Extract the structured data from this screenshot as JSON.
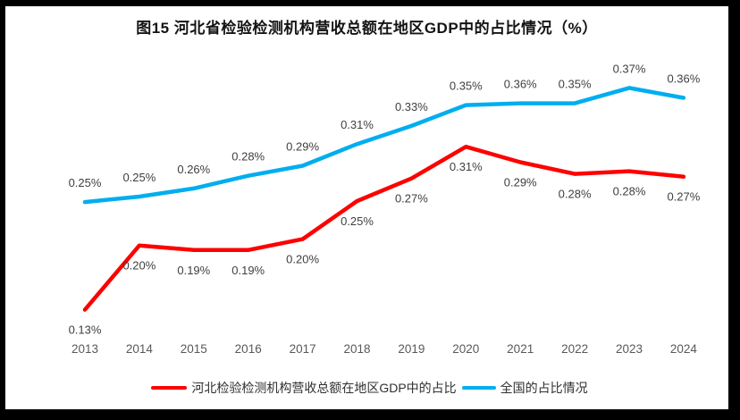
{
  "frame": {
    "border_color": "#000000",
    "background_color": "#ffffff"
  },
  "chart_data": {
    "type": "line",
    "title": "图15 河北省检验检测机构营收总额在地区GDP中的占比情况（%）",
    "x": [
      "2013",
      "2014",
      "2015",
      "2016",
      "2017",
      "2018",
      "2019",
      "2020",
      "2021",
      "2022",
      "2023",
      "2024"
    ],
    "y_ticks": [
      "0.40%",
      "0.35%",
      "0.30%",
      "0.25%",
      "0.20%",
      "0.15%",
      "0.10%"
    ],
    "ylim": [
      0.1,
      0.4
    ],
    "grid": true,
    "grid_color": "#D9D9D9",
    "axis_text_color": "#595959",
    "label_color": "#3f3f3f",
    "legend_position": "bottom",
    "series": [
      {
        "key": "hebei",
        "name": "河北检验检测机构营收总额在地区GDP中的占比",
        "color": "#FE0000",
        "label_side": "below",
        "values": [
          0.127,
          0.198,
          0.193,
          0.193,
          0.205,
          0.247,
          0.272,
          0.307,
          0.29,
          0.277,
          0.28,
          0.274
        ],
        "labels": [
          "0.13%",
          "0.20%",
          "0.19%",
          "0.19%",
          "0.20%",
          "0.25%",
          "0.27%",
          "0.31%",
          "0.29%",
          "0.28%",
          "0.28%",
          "0.27%"
        ]
      },
      {
        "key": "national",
        "name": "全国的占比情况",
        "color": "#00AEEF",
        "label_side": "above",
        "values": [
          0.246,
          0.252,
          0.261,
          0.275,
          0.286,
          0.31,
          0.33,
          0.353,
          0.355,
          0.355,
          0.372,
          0.361
        ],
        "labels": [
          "0.25%",
          "0.25%",
          "0.26%",
          "0.28%",
          "0.29%",
          "0.31%",
          "0.33%",
          "0.35%",
          "0.36%",
          "0.35%",
          "0.37%",
          "0.36%"
        ]
      }
    ]
  }
}
